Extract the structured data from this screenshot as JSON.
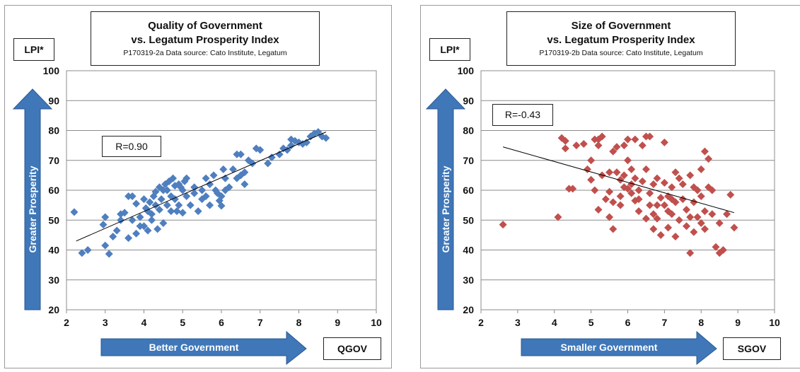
{
  "colors": {
    "arrow_fill": "#3f77b8",
    "arrow_stroke": "#2c5a92",
    "left_marker": "#4f7fbf",
    "right_marker": "#c0504d",
    "trend_line": "#000000",
    "grid": "#8c8c8c"
  },
  "chart_data": [
    {
      "type": "scatter",
      "title": "Quality of Government",
      "subtitle": "vs. Legatum Prosperity Index",
      "source": "P170319-2a Data source: Cato Institute, Legatum",
      "ylabel": "LPI*",
      "y_arrow_label": "Greater Prosperity",
      "x_arrow_label": "Better Government",
      "xlabel": "QGOV",
      "annotation": "R=0.90",
      "xlim": [
        2,
        10
      ],
      "ylim": [
        20,
        100
      ],
      "xticks": [
        2,
        3,
        4,
        5,
        6,
        7,
        8,
        9,
        10
      ],
      "yticks": [
        20,
        30,
        40,
        50,
        60,
        70,
        80,
        90,
        100
      ],
      "grid": "horizontal",
      "trendline": [
        [
          2.25,
          43
        ],
        [
          8.7,
          79.5
        ]
      ],
      "marker_color": "#4f7fbf",
      "x": [
        2.2,
        2.4,
        2.55,
        2.95,
        3.0,
        3.0,
        3.1,
        3.2,
        3.3,
        3.4,
        3.4,
        3.5,
        3.6,
        3.6,
        3.7,
        3.7,
        3.8,
        3.8,
        3.9,
        3.9,
        4.0,
        4.0,
        4.05,
        4.1,
        4.1,
        4.15,
        4.2,
        4.2,
        4.25,
        4.3,
        4.3,
        4.35,
        4.4,
        4.4,
        4.45,
        4.5,
        4.5,
        4.55,
        4.6,
        4.6,
        4.65,
        4.7,
        4.7,
        4.75,
        4.8,
        4.8,
        4.85,
        4.9,
        4.9,
        4.95,
        5.0,
        5.0,
        5.05,
        5.1,
        5.1,
        5.2,
        5.3,
        5.3,
        5.4,
        5.5,
        5.5,
        5.6,
        5.6,
        5.7,
        5.7,
        5.8,
        5.85,
        5.9,
        5.95,
        6.0,
        6.0,
        6.05,
        6.1,
        6.1,
        6.2,
        6.3,
        6.4,
        6.4,
        6.5,
        6.5,
        6.6,
        6.6,
        6.7,
        6.8,
        6.9,
        7.0,
        7.2,
        7.3,
        7.5,
        7.6,
        7.7,
        7.8,
        7.8,
        7.9,
        8.0,
        8.1,
        8.2,
        8.3,
        8.4,
        8.5,
        8.6,
        8.7
      ],
      "y": [
        52.7,
        39,
        40,
        48.5,
        51,
        41.5,
        38.7,
        44.5,
        46.5,
        52,
        50,
        52.5,
        58,
        44,
        58,
        50,
        45.5,
        55.5,
        48,
        51,
        57,
        48,
        54,
        53,
        46.5,
        56,
        52,
        50,
        58,
        59.5,
        55,
        47,
        61,
        53.5,
        57,
        49,
        60,
        62,
        60,
        55,
        63,
        58,
        53,
        64,
        57,
        61.5,
        53,
        62,
        55,
        61,
        60,
        52.5,
        63,
        64,
        58,
        55,
        61,
        59,
        53,
        57,
        60,
        64,
        58,
        62,
        55,
        65,
        60,
        59,
        56.5,
        58,
        54.8,
        67,
        60,
        64,
        61,
        67,
        72,
        64,
        65,
        72,
        66,
        62,
        70,
        69,
        74,
        73.5,
        69,
        71,
        72,
        74,
        73.5,
        77,
        75,
        76.5,
        76,
        75.5,
        76,
        78,
        79,
        79.5,
        78,
        77.5
      ]
    },
    {
      "type": "scatter",
      "title": "Size of Government",
      "subtitle": "vs. Legatum Prosperity Index",
      "source": "P170319-2b Data source: Cato Institute, Legatum",
      "ylabel": "LPI*",
      "y_arrow_label": "Greater Prosperity",
      "x_arrow_label": "Smaller Government",
      "xlabel": "SGOV",
      "annotation": "R=-0.43",
      "xlim": [
        2,
        10
      ],
      "ylim": [
        20,
        100
      ],
      "xticks": [
        2,
        3,
        4,
        5,
        6,
        7,
        8,
        9,
        10
      ],
      "yticks": [
        20,
        30,
        40,
        50,
        60,
        70,
        80,
        90,
        100
      ],
      "grid": "horizontal",
      "trendline": [
        [
          2.6,
          74.5
        ],
        [
          8.9,
          52.5
        ]
      ],
      "marker_color": "#c0504d",
      "x": [
        2.6,
        4.1,
        4.2,
        4.3,
        4.3,
        4.4,
        4.5,
        4.6,
        4.8,
        4.9,
        5.0,
        5.0,
        5.1,
        5.1,
        5.2,
        5.2,
        5.2,
        5.3,
        5.3,
        5.4,
        5.5,
        5.5,
        5.5,
        5.6,
        5.6,
        5.6,
        5.7,
        5.7,
        5.8,
        5.8,
        5.8,
        5.9,
        5.9,
        5.9,
        6.0,
        6.0,
        6.0,
        6.1,
        6.1,
        6.1,
        6.2,
        6.2,
        6.2,
        6.3,
        6.3,
        6.3,
        6.4,
        6.4,
        6.5,
        6.5,
        6.5,
        6.6,
        6.6,
        6.6,
        6.7,
        6.7,
        6.7,
        6.8,
        6.8,
        6.8,
        6.9,
        6.9,
        7.0,
        7.0,
        7.0,
        7.1,
        7.1,
        7.1,
        7.2,
        7.2,
        7.2,
        7.3,
        7.3,
        7.3,
        7.4,
        7.4,
        7.5,
        7.5,
        7.6,
        7.6,
        7.7,
        7.7,
        7.7,
        7.8,
        7.8,
        7.8,
        7.9,
        7.9,
        8.0,
        8.0,
        8.0,
        8.1,
        8.1,
        8.1,
        8.2,
        8.2,
        8.3,
        8.3,
        8.4,
        8.5,
        8.5,
        8.6,
        8.7,
        8.8,
        8.9
      ],
      "y": [
        48.5,
        51,
        77.5,
        74,
        76.5,
        60.5,
        60.5,
        75,
        75.5,
        67,
        63.5,
        70,
        77,
        60,
        77,
        53.5,
        75,
        78,
        65,
        57,
        66,
        59.5,
        51,
        73,
        56,
        47,
        74.5,
        66,
        63.5,
        58,
        55,
        65,
        61,
        75,
        77,
        60.5,
        70,
        67,
        59,
        62,
        77,
        64,
        56.5,
        60,
        57,
        53,
        75,
        63,
        67,
        78,
        50.5,
        59,
        55,
        78,
        52,
        62,
        47,
        64,
        55,
        50.5,
        57.5,
        45,
        62.5,
        55,
        76,
        53,
        58,
        47.5,
        57,
        52,
        61,
        66,
        56,
        44.5,
        64,
        50,
        57,
        62,
        48,
        53.5,
        51,
        65,
        39,
        61,
        46,
        56,
        60,
        51,
        67,
        49,
        58,
        73,
        53,
        47,
        70.5,
        61,
        52,
        60,
        41,
        39,
        49,
        40,
        52,
        58.5,
        47.5
      ]
    }
  ]
}
